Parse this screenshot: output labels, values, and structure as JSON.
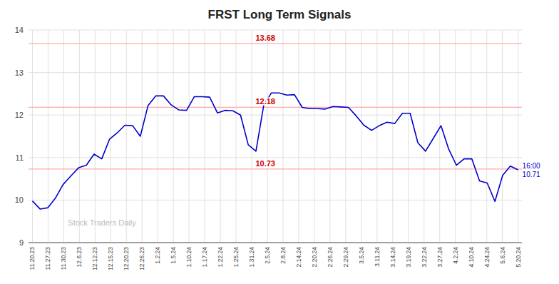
{
  "chart_data": {
    "type": "line",
    "title": "FRST Long Term Signals",
    "x": [
      0,
      1,
      2,
      3,
      4,
      5,
      6,
      7,
      8,
      9,
      10,
      11,
      12,
      13,
      14,
      15,
      16,
      17,
      18,
      19,
      20,
      21,
      22,
      23,
      24,
      25,
      26,
      27,
      28,
      29,
      30,
      31,
      32,
      33,
      34,
      35,
      36,
      37,
      38,
      39,
      40,
      41,
      42,
      43,
      44,
      45,
      46,
      47,
      48,
      49,
      50,
      51,
      52,
      53,
      54,
      55,
      56,
      57,
      58,
      59,
      60,
      61,
      62,
      63
    ],
    "values": [
      9.98,
      9.79,
      9.82,
      10.05,
      10.37,
      10.57,
      10.76,
      10.82,
      11.08,
      10.97,
      11.43,
      11.58,
      11.76,
      11.75,
      11.5,
      12.22,
      12.45,
      12.45,
      12.24,
      12.12,
      12.11,
      12.43,
      12.43,
      12.42,
      12.05,
      12.11,
      12.1,
      12.0,
      11.3,
      11.15,
      12.22,
      12.52,
      12.52,
      12.47,
      12.48,
      12.18,
      12.15,
      12.15,
      12.14,
      12.2,
      12.19,
      12.18,
      11.98,
      11.76,
      11.64,
      11.75,
      11.83,
      11.8,
      12.04,
      12.04,
      11.35,
      11.15,
      11.45,
      11.75,
      11.2,
      10.82,
      10.97,
      10.97,
      10.45,
      10.4,
      9.97,
      10.58,
      10.8,
      10.71
    ],
    "color": "#0000cc",
    "xlim": [
      -0.5,
      63.5
    ],
    "xticks": [
      {
        "value": 0,
        "label": "11.20.23"
      },
      {
        "value": 2.032258064516129,
        "label": "11.27.23"
      },
      {
        "value": 4.064516129032258,
        "label": "11.30.23"
      },
      {
        "value": 6.096774193548387,
        "label": "12.6.23"
      },
      {
        "value": 8.129032258064516,
        "label": "12.12.23"
      },
      {
        "value": 10.161290322580644,
        "label": "12.15.23"
      },
      {
        "value": 12.193548387096774,
        "label": "12.20.23"
      },
      {
        "value": 14.225806451612904,
        "label": "12.26.23"
      },
      {
        "value": 16.258064516129032,
        "label": "1.2.24"
      },
      {
        "value": 18.29032258064516,
        "label": "1.5.24"
      },
      {
        "value": 20.322580645161292,
        "label": "1.10.24"
      },
      {
        "value": 22.35483870967742,
        "label": "1.17.24"
      },
      {
        "value": 24.387096774193548,
        "label": "1.22.24"
      },
      {
        "value": 26.419354838709676,
        "label": "1.25.24"
      },
      {
        "value": 28.451612903225808,
        "label": "1.31.24"
      },
      {
        "value": 30.483870967741936,
        "label": "2.5.24"
      },
      {
        "value": 32.516129032258064,
        "label": "2.8.24"
      },
      {
        "value": 34.54838709677419,
        "label": "2.14.24"
      },
      {
        "value": 36.58064516129032,
        "label": "2.20.24"
      },
      {
        "value": 38.61290322580645,
        "label": "2.26.24"
      },
      {
        "value": 40.645161290322584,
        "label": "2.29.24"
      },
      {
        "value": 42.67741935483871,
        "label": "3.5.24"
      },
      {
        "value": 44.70967741935484,
        "label": "3.11.24"
      },
      {
        "value": 46.74193548387097,
        "label": "3.14.24"
      },
      {
        "value": 48.774193548387096,
        "label": "3.19.24"
      },
      {
        "value": 50.806451612903224,
        "label": "3.22.24"
      },
      {
        "value": 52.83870967741935,
        "label": "3.27.24"
      },
      {
        "value": 54.87096774193548,
        "label": "4.2.24"
      },
      {
        "value": 56.903225806451616,
        "label": "4.10.24"
      },
      {
        "value": 58.935483870967744,
        "label": "4.24.24"
      },
      {
        "value": 60.96774193548387,
        "label": "5.6.24"
      },
      {
        "value": 63,
        "label": "5.20.24"
      }
    ],
    "ylim": [
      9,
      14
    ],
    "yticks": [
      9,
      10,
      11,
      12,
      13,
      14
    ],
    "grid": true,
    "reference_lines": [
      13.68,
      12.18,
      10.73
    ],
    "annotation": {
      "label": "16:00",
      "value": 10.71
    },
    "watermark": "Stock Traders Daily"
  }
}
